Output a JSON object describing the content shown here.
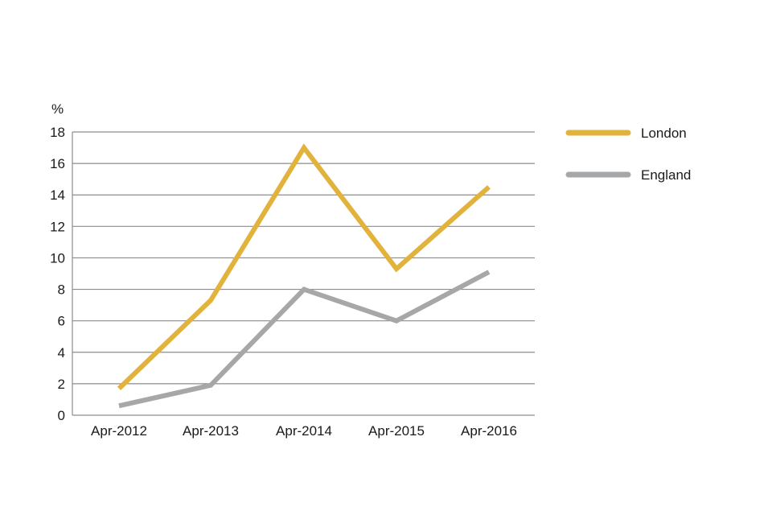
{
  "chart_data": {
    "type": "line",
    "x": [
      "Apr-2012",
      "Apr-2013",
      "Apr-2014",
      "Apr-2015",
      "Apr-2016"
    ],
    "y_unit": "%",
    "ylim": [
      0,
      18
    ],
    "yticks": [
      "0",
      "2",
      "4",
      "6",
      "8",
      "10",
      "12",
      "14",
      "16",
      "18"
    ],
    "grid": true,
    "legend_position": "right",
    "series": [
      {
        "name": "London",
        "color": "#e2b33c",
        "values": [
          1.7,
          7.3,
          17.0,
          9.3,
          14.5
        ]
      },
      {
        "name": "England",
        "color": "#a6a7a9",
        "values": [
          0.6,
          1.9,
          8.0,
          6.0,
          9.1
        ]
      }
    ]
  }
}
